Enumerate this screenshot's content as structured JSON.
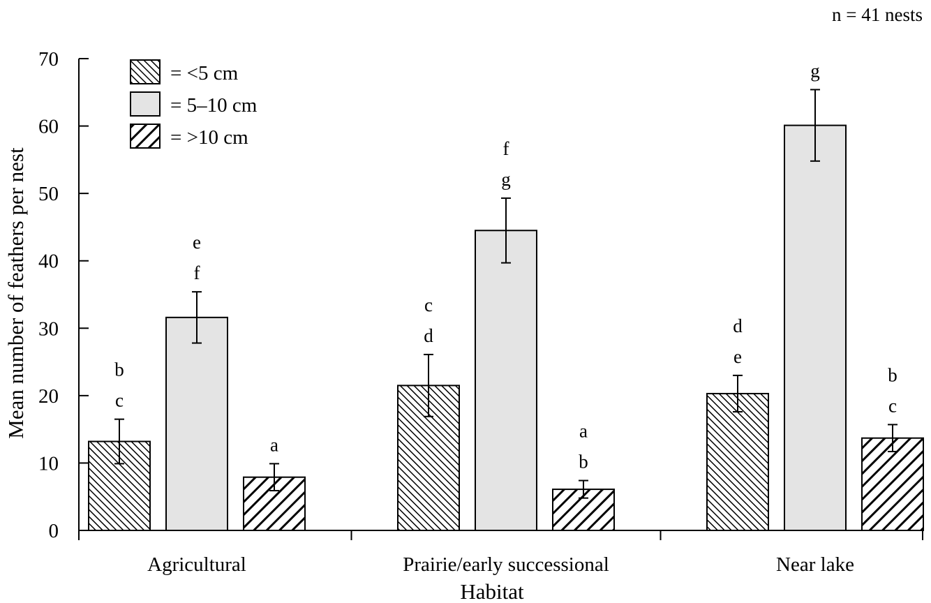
{
  "chart_data": {
    "type": "bar",
    "title": "",
    "xlabel": "Habitat",
    "ylabel": "Mean number of feathers per nest",
    "note": "n = 41 nests",
    "ylim": [
      0,
      70
    ],
    "yticks": [
      0,
      10,
      20,
      30,
      40,
      50,
      60,
      70
    ],
    "grid": false,
    "legend_position": "top-left",
    "categories": [
      "Agricultural",
      "Prairie/early successional",
      "Near lake"
    ],
    "series": [
      {
        "name": "= <5 cm",
        "fill": "hatch-fine",
        "values": [
          13.2,
          21.5,
          20.3
        ],
        "errors": [
          3.3,
          4.6,
          2.7
        ],
        "letters": [
          [
            "b",
            "c"
          ],
          [
            "c",
            "d"
          ],
          [
            "d",
            "e"
          ]
        ]
      },
      {
        "name": "= 5–10 cm",
        "fill": "solid",
        "values": [
          31.6,
          44.5,
          60.1
        ],
        "errors": [
          3.8,
          4.8,
          5.3
        ],
        "letters": [
          [
            "e",
            "f"
          ],
          [
            "f",
            "g"
          ],
          [
            "g"
          ]
        ]
      },
      {
        "name": "= >10 cm",
        "fill": "hatch-coarse",
        "values": [
          7.9,
          6.1,
          13.7
        ],
        "errors": [
          2.0,
          1.3,
          2.0
        ],
        "letters": [
          [
            "a"
          ],
          [
            "a",
            "b"
          ],
          [
            "b",
            "c"
          ]
        ]
      }
    ],
    "colors": {
      "bar_fill_light": "#e4e4e4",
      "hatch": "#000000",
      "axis": "#000000"
    }
  }
}
